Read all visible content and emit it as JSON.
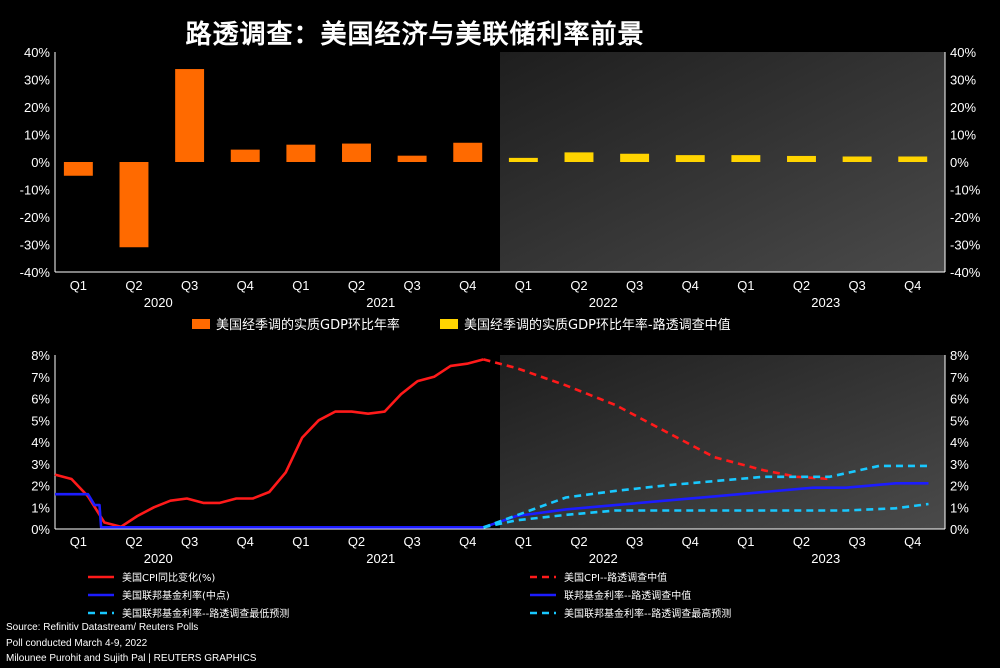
{
  "title": "路透调查：美国经济与美联储利率前景",
  "source_lines": [
    "Source: Refinitiv Datastream/  Reuters Polls",
    "Poll conducted March 4-9, 2022",
    "Milounee Purohit and Sujith Pal | REUTERS GRAPHICS"
  ],
  "quarters": [
    "Q1",
    "Q2",
    "Q3",
    "Q4",
    "Q1",
    "Q2",
    "Q3",
    "Q4",
    "Q1",
    "Q2",
    "Q3",
    "Q4",
    "Q1",
    "Q2",
    "Q3",
    "Q4"
  ],
  "years": [
    "2020",
    "2021",
    "2022",
    "2023"
  ],
  "colors": {
    "actual_gdp": "#ff6a00",
    "poll_gdp": "#ffd400",
    "cpi": "#ff1a1a",
    "fed": "#1c1cff",
    "fed_poll": "#18c8ff"
  },
  "chart_data": [
    {
      "type": "bar",
      "categories": [
        "2020 Q1",
        "2020 Q2",
        "2020 Q3",
        "2020 Q4",
        "2021 Q1",
        "2021 Q2",
        "2021 Q3",
        "2021 Q4",
        "2022 Q1",
        "2022 Q2",
        "2022 Q3",
        "2022 Q4",
        "2023 Q1",
        "2023 Q2",
        "2023 Q3",
        "2023 Q4"
      ],
      "ylim": [
        -40,
        40
      ],
      "yticks": [
        "40%",
        "30%",
        "20%",
        "10%",
        "0%",
        "-10%",
        "-20%",
        "-30%",
        "-40%"
      ],
      "forecast_shaded_from": "2022 Q1",
      "legend": "bottom",
      "series": [
        {
          "name": "美国经季调的实质GDP环比年率",
          "values": [
            -5,
            -31,
            33.8,
            4.5,
            6.3,
            6.7,
            2.3,
            7.0,
            null,
            null,
            null,
            null,
            null,
            null,
            null,
            null
          ]
        },
        {
          "name": "美国经季调的实质GDP环比年率-路透调查中值",
          "values": [
            null,
            null,
            null,
            null,
            null,
            null,
            null,
            null,
            1.5,
            3.5,
            3.0,
            2.5,
            2.5,
            2.2,
            2.0,
            2.0
          ]
        }
      ]
    },
    {
      "type": "line",
      "x_range": [
        "2020-01",
        "2023-12"
      ],
      "ylim": [
        0,
        8
      ],
      "yticks": [
        "8%",
        "7%",
        "6%",
        "5%",
        "4%",
        "3%",
        "2%",
        "1%",
        "0%"
      ],
      "forecast_shaded_from": "2022 Q1",
      "legend": "bottom",
      "series": [
        {
          "name": "美国CPI同比变化(%)",
          "style": "solid",
          "points": [
            [
              0,
              2.5
            ],
            [
              1,
              2.3
            ],
            [
              2,
              1.5
            ],
            [
              3,
              0.3
            ],
            [
              4,
              0.1
            ],
            [
              5,
              0.6
            ],
            [
              6,
              1.0
            ],
            [
              7,
              1.3
            ],
            [
              8,
              1.4
            ],
            [
              9,
              1.2
            ],
            [
              10,
              1.2
            ],
            [
              11,
              1.4
            ],
            [
              12,
              1.4
            ],
            [
              13,
              1.7
            ],
            [
              14,
              2.6
            ],
            [
              15,
              4.2
            ],
            [
              16,
              5.0
            ],
            [
              17,
              5.4
            ],
            [
              18,
              5.4
            ],
            [
              19,
              5.3
            ],
            [
              20,
              5.4
            ],
            [
              21,
              6.2
            ],
            [
              22,
              6.8
            ],
            [
              23,
              7.0
            ],
            [
              24,
              7.5
            ],
            [
              25,
              7.6
            ],
            [
              26,
              7.8
            ]
          ]
        },
        {
          "name": "美国CPI--路透调查中值",
          "style": "dashed",
          "points": [
            [
              26,
              7.8
            ],
            [
              28,
              7.4
            ],
            [
              31,
              6.6
            ],
            [
              34,
              5.7
            ],
            [
              37,
              4.5
            ],
            [
              40,
              3.3
            ],
            [
              43,
              2.7
            ],
            [
              45,
              2.4
            ],
            [
              47,
              2.3
            ]
          ]
        },
        {
          "name": "美国联邦基金利率(中点)",
          "style": "solid",
          "points": [
            [
              0,
              1.6
            ],
            [
              1,
              1.6
            ],
            [
              2,
              1.6
            ],
            [
              2.4,
              1.1
            ],
            [
              2.7,
              1.1
            ],
            [
              2.8,
              0.08
            ],
            [
              25,
              0.08
            ],
            [
              26,
              0.08
            ]
          ]
        },
        {
          "name": "联邦基金利率--路透调查中值",
          "style": "solid",
          "points": [
            [
              26,
              0.08
            ],
            [
              28,
              0.6
            ],
            [
              31,
              0.9
            ],
            [
              34,
              1.1
            ],
            [
              37,
              1.3
            ],
            [
              40,
              1.5
            ],
            [
              43,
              1.7
            ],
            [
              46,
              1.9
            ],
            [
              48,
              1.9
            ],
            [
              51,
              2.1
            ],
            [
              53,
              2.1
            ]
          ]
        },
        {
          "name": "美国联邦基金利率--路透调查最低预测",
          "style": "dashed",
          "points": [
            [
              26,
              0.08
            ],
            [
              28,
              0.4
            ],
            [
              31,
              0.65
            ],
            [
              34,
              0.85
            ],
            [
              38,
              0.85
            ],
            [
              48,
              0.85
            ],
            [
              51,
              0.95
            ],
            [
              53,
              1.15
            ]
          ]
        },
        {
          "name": "美国联邦基金利率--路透调查最高预测",
          "style": "dashed",
          "points": [
            [
              26,
              0.08
            ],
            [
              29,
              0.9
            ],
            [
              31,
              1.45
            ],
            [
              34,
              1.75
            ],
            [
              37,
              2.0
            ],
            [
              40,
              2.2
            ],
            [
              43,
              2.4
            ],
            [
              47,
              2.4
            ],
            [
              50,
              2.9
            ],
            [
              53,
              2.9
            ]
          ]
        }
      ]
    }
  ]
}
